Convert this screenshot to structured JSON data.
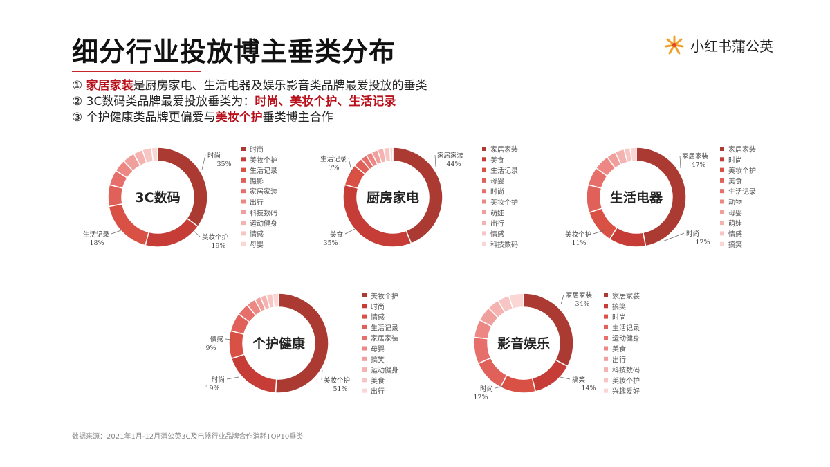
{
  "header": {
    "title": "细分行业投放博主垂类分布",
    "brand": "小红书蒲公英"
  },
  "points": [
    {
      "segments": [
        {
          "text": "① ",
          "hl": false
        },
        {
          "text": "家居家装",
          "hl": true
        },
        {
          "text": "是厨房家电、生活电器及娱乐影音类品牌最爱投放的垂类",
          "hl": false
        }
      ]
    },
    {
      "segments": [
        {
          "text": "② 3C数码类品牌最爱投放垂类为：",
          "hl": false
        },
        {
          "text": "时尚、美妆个护、生活记录",
          "hl": true
        }
      ]
    },
    {
      "segments": [
        {
          "text": "③ 个护健康类品牌更偏爱与",
          "hl": false
        },
        {
          "text": "美妆个护",
          "hl": true
        },
        {
          "text": "垂类博主合作",
          "hl": false
        }
      ]
    }
  ],
  "footnote": "数据来源：2021年1月-12月蒲公英3C及电器行业品牌合作消耗TOP10垂类",
  "colors": [
    "#ab3a33",
    "#c63c36",
    "#d95045",
    "#e0615a",
    "#e66f6c",
    "#ec8783",
    "#f0a09c",
    "#f4b3b0",
    "#f7c6c4",
    "#fad6d5"
  ],
  "chart_data": [
    {
      "type": "pie",
      "donut": true,
      "center_label": "3C数码",
      "categories": [
        "时尚",
        "美妆个护",
        "生活记录",
        "摄影",
        "家居家装",
        "出行",
        "科技数码",
        "运动健身",
        "情感",
        "母婴"
      ],
      "values": [
        35,
        19,
        18,
        7,
        5,
        4,
        4,
        3,
        3,
        2
      ],
      "callouts": [
        {
          "label": "时尚",
          "value": "35%"
        },
        {
          "label": "美妆个护",
          "value": "19%"
        },
        {
          "label": "生活记录",
          "value": "18%"
        }
      ]
    },
    {
      "type": "pie",
      "donut": true,
      "center_label": "厨房家电",
      "categories": [
        "家居家装",
        "美食",
        "生活记录",
        "母婴",
        "时尚",
        "美妆个护",
        "萌娃",
        "出行",
        "情感",
        "科技数码"
      ],
      "values": [
        44,
        35,
        7,
        3,
        2,
        2,
        2,
        2,
        2,
        1
      ],
      "callouts": [
        {
          "label": "家居家装",
          "value": "44%"
        },
        {
          "label": "美食",
          "value": "35%"
        },
        {
          "label": "生活记录",
          "value": "7%"
        }
      ]
    },
    {
      "type": "pie",
      "donut": true,
      "center_label": "生活电器",
      "categories": [
        "家居家装",
        "时尚",
        "美妆个护",
        "美食",
        "生活记录",
        "动物",
        "母婴",
        "萌娃",
        "情感",
        "搞笑"
      ],
      "values": [
        47,
        12,
        11,
        9,
        6,
        5,
        3,
        3,
        2,
        2
      ],
      "callouts": [
        {
          "label": "家居家装",
          "value": "47%"
        },
        {
          "label": "时尚",
          "value": "12%"
        },
        {
          "label": "美妆个护",
          "value": "11%"
        }
      ]
    },
    {
      "type": "pie",
      "donut": true,
      "center_label": "个护健康",
      "categories": [
        "美妆个护",
        "时尚",
        "情感",
        "生活记录",
        "家居家装",
        "母婴",
        "搞笑",
        "运动健身",
        "美食",
        "出行"
      ],
      "values": [
        51,
        19,
        9,
        6,
        4,
        3,
        2,
        2,
        2,
        2
      ],
      "callouts": [
        {
          "label": "美妆个护",
          "value": "51%"
        },
        {
          "label": "时尚",
          "value": "19%"
        },
        {
          "label": "情感",
          "value": "9%"
        }
      ]
    },
    {
      "type": "pie",
      "donut": true,
      "center_label": "影音娱乐",
      "categories": [
        "家居家装",
        "搞笑",
        "时尚",
        "生活记录",
        "运动健身",
        "美食",
        "出行",
        "科技数码",
        "美妆个护",
        "兴趣爱好"
      ],
      "values": [
        34,
        14,
        12,
        11,
        9,
        6,
        5,
        4,
        4,
        5
      ],
      "callouts": [
        {
          "label": "家居家装",
          "value": "34%"
        },
        {
          "label": "搞笑",
          "value": "14%"
        },
        {
          "label": "时尚",
          "value": "12%"
        }
      ]
    }
  ]
}
